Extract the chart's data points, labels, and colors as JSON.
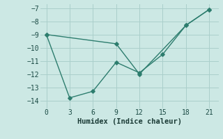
{
  "line1_x": [
    0,
    3,
    6,
    9,
    12,
    15,
    18,
    21
  ],
  "line1_y": [
    -9.0,
    -13.8,
    -13.3,
    -11.1,
    -11.9,
    -10.5,
    -8.3,
    -7.1
  ],
  "line2_x": [
    0,
    9,
    12,
    18,
    21
  ],
  "line2_y": [
    -9.0,
    -9.7,
    -12.0,
    -8.3,
    -7.1
  ],
  "color": "#2d7d6e",
  "bg_color": "#cce8e4",
  "grid_color": "#aacfcb",
  "xlabel": "Humidex (Indice chaleur)",
  "xlabel_fontsize": 7.5,
  "xticks": [
    0,
    3,
    6,
    9,
    12,
    15,
    18,
    21
  ],
  "yticks": [
    -14,
    -13,
    -12,
    -11,
    -10,
    -9,
    -8,
    -7
  ],
  "ylim": [
    -14.6,
    -6.7
  ],
  "xlim": [
    -0.8,
    22.2
  ],
  "linewidth": 1.0,
  "marker": "D",
  "markersize": 2.8,
  "tick_fontsize": 7.0
}
